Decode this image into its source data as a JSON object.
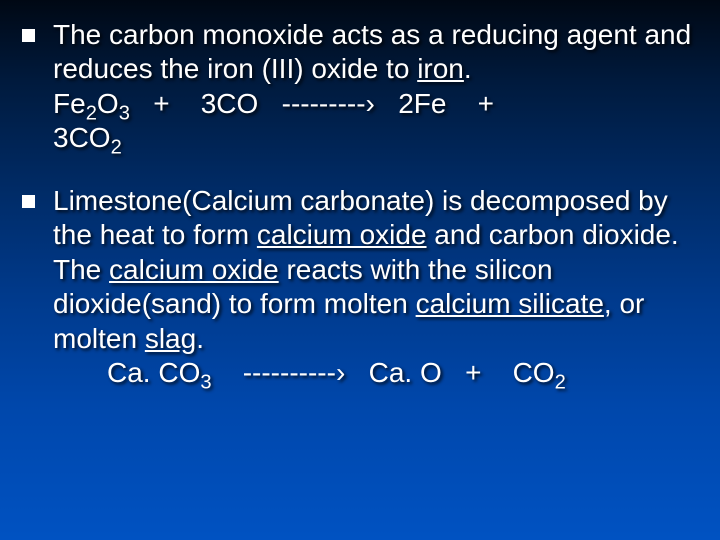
{
  "slide": {
    "background_gradient": [
      "#000814",
      "#001a3d",
      "#002b66",
      "#003a8c",
      "#0047ab",
      "#0052c2"
    ],
    "text_color": "#ffffff",
    "font_family": "Arial",
    "font_size_pt": 28,
    "bullets": [
      {
        "segments": [
          {
            "text": "The carbon monoxide acts as a reducing agent and reduces the iron (III) oxide to ",
            "underline": false
          },
          {
            "text": "iron",
            "underline": true
          },
          {
            "text": ".",
            "underline": false
          }
        ],
        "equation": {
          "lhs1": "Fe",
          "lhs1_sub1": "2",
          "lhs1_mid": "O",
          "lhs1_sub2": "3",
          "plus1": "   +    ",
          "lhs2": "3CO",
          "arrow": "   ---------›   ",
          "rhs1": "2Fe",
          "plus2": "    +    ",
          "wrap": "3CO",
          "wrap_sub": "2"
        }
      },
      {
        "segments": [
          {
            "text": "Limestone(Calcium carbonate) is decomposed by the heat to form ",
            "underline": false
          },
          {
            "text": "calcium oxide",
            "underline": true
          },
          {
            "text": " and carbon dioxide. The ",
            "underline": false
          },
          {
            "text": "calcium oxide",
            "underline": true
          },
          {
            "text": " reacts with the silicon dioxide(sand) to form molten ",
            "underline": false
          },
          {
            "text": "calcium silicate",
            "underline": true
          },
          {
            "text": ", or molten ",
            "underline": false
          },
          {
            "text": "slag",
            "underline": true
          },
          {
            "text": ".",
            "underline": false
          }
        ],
        "equation2": {
          "lhs": "Ca. CO",
          "lhs_sub": "3",
          "arrow": "    ----------›   ",
          "rhs1": "Ca. O",
          "plus": "   +    ",
          "rhs2": "CO",
          "rhs2_sub": "2"
        }
      }
    ]
  }
}
